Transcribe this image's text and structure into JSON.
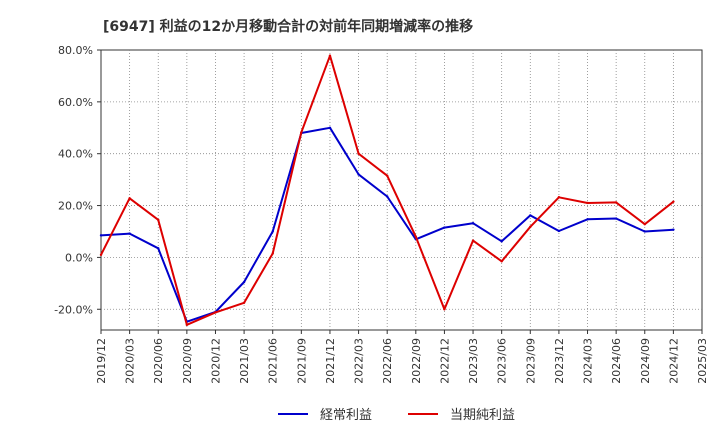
{
  "chart_data": {
    "type": "line",
    "title": "[6947]  利益の12か月移動合計の対前年同期増減率の推移",
    "xlabel": "",
    "ylabel": "",
    "ylim": [
      -28,
      80
    ],
    "yticks": [
      80,
      60,
      40,
      20,
      0,
      -20
    ],
    "ytick_labels": [
      "80.0%",
      "60.0%",
      "40.0%",
      "20.0%",
      "0.0%",
      "-20.0%"
    ],
    "x": [
      "2019/12",
      "2020/03",
      "2020/06",
      "2020/09",
      "2020/12",
      "2021/03",
      "2021/06",
      "2021/09",
      "2021/12",
      "2022/03",
      "2022/06",
      "2022/09",
      "2022/12",
      "2023/03",
      "2023/06",
      "2023/09",
      "2023/12",
      "2024/03",
      "2024/06",
      "2024/09",
      "2024/12",
      "2025/03"
    ],
    "grid": true,
    "legend_position": "bottom",
    "series": [
      {
        "name": "経常利益",
        "color": "#0000cc",
        "values": [
          8.5,
          9.2,
          3.5,
          -24.8,
          -21.0,
          -9.5,
          10.0,
          48.0,
          50.0,
          32.0,
          23.5,
          7.0,
          11.5,
          13.2,
          6.2,
          16.2,
          10.2,
          14.7,
          15.0,
          10.0,
          10.7,
          null
        ]
      },
      {
        "name": "当期純利益",
        "color": "#dd0000",
        "values": [
          1.0,
          22.8,
          14.5,
          -26.0,
          -21.2,
          -17.5,
          1.5,
          48.2,
          77.8,
          40.0,
          31.5,
          8.0,
          -20.0,
          6.5,
          -1.5,
          11.8,
          23.2,
          21.0,
          21.2,
          12.8,
          21.5,
          null
        ]
      }
    ]
  }
}
